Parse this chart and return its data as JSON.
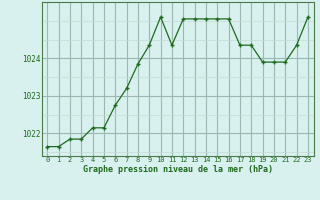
{
  "x": [
    0,
    1,
    2,
    3,
    4,
    5,
    6,
    7,
    8,
    9,
    10,
    11,
    12,
    13,
    14,
    15,
    16,
    17,
    18,
    19,
    20,
    21,
    22,
    23
  ],
  "y": [
    1021.65,
    1021.65,
    1021.85,
    1021.85,
    1022.15,
    1022.15,
    1022.75,
    1023.2,
    1023.85,
    1024.35,
    1025.1,
    1024.35,
    1025.05,
    1025.05,
    1025.05,
    1025.05,
    1025.05,
    1024.35,
    1024.35,
    1023.9,
    1023.9,
    1023.9,
    1024.35,
    1025.1
  ],
  "line_color": "#1e6b1e",
  "marker_color": "#1e6b1e",
  "bg_color": "#d8f0ee",
  "grid_color_major": "#9ab8b2",
  "grid_color_minor": "#c4dcd8",
  "xlabel": "Graphe pression niveau de la mer (hPa)",
  "xlabel_color": "#1e6b1e",
  "tick_color": "#1e6b1e",
  "axis_color": "#4a7a4a",
  "ylim_min": 1021.4,
  "ylim_max": 1025.5,
  "yticks": [
    1022,
    1023,
    1024
  ],
  "xticks": [
    0,
    1,
    2,
    3,
    4,
    5,
    6,
    7,
    8,
    9,
    10,
    11,
    12,
    13,
    14,
    15,
    16,
    17,
    18,
    19,
    20,
    21,
    22,
    23
  ]
}
